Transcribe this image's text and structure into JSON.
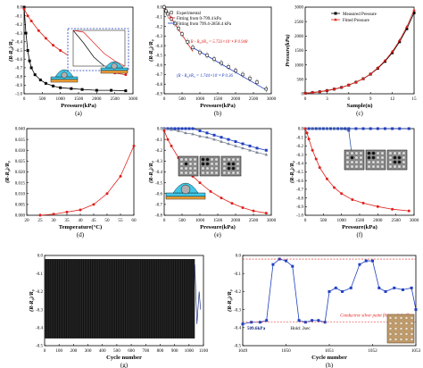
{
  "colors": {
    "black": "#000000",
    "red": "#e0201b",
    "blue": "#1f3fbf",
    "steelblue": "#3a5aa6",
    "gray": "#7a8494",
    "cyan": "#41c8e8",
    "orange": "#f2a33a",
    "navy": "#0b1e78"
  },
  "chart_data": [
    {
      "id": "a",
      "type": "line",
      "caption": "(a)",
      "xlabel": "Pressure(kPa)",
      "ylabel": "(R-R₀)/R₀",
      "xlim": [
        0,
        3000
      ],
      "ylim": [
        -1.0,
        0.0
      ],
      "xticks": [
        "0",
        "500",
        "1000",
        "1500",
        "2000",
        "2500",
        "3000"
      ],
      "yticks": [
        "0.0",
        "-0.1",
        "-0.2",
        "-0.3",
        "-0.4",
        "-0.5",
        "-0.6",
        "-0.7",
        "-0.8",
        "-0.9",
        "-1.0"
      ],
      "series": [
        {
          "color": "black",
          "marker": "square",
          "x": [
            0,
            50,
            100,
            150,
            200,
            300,
            450,
            600,
            800,
            1000,
            1300,
            1600,
            2000,
            2400,
            2800
          ],
          "y": [
            0,
            -0.3,
            -0.5,
            -0.62,
            -0.7,
            -0.78,
            -0.84,
            -0.88,
            -0.91,
            -0.93,
            -0.94,
            -0.95,
            -0.96,
            -0.96,
            -0.965
          ]
        },
        {
          "color": "red",
          "marker": "circle",
          "x": [
            0,
            100,
            200,
            400,
            600,
            800,
            1000,
            1300,
            1600,
            1900,
            2200,
            2500,
            2800
          ],
          "y": [
            -0.02,
            -0.1,
            -0.16,
            -0.27,
            -0.36,
            -0.44,
            -0.5,
            -0.58,
            -0.64,
            -0.69,
            -0.73,
            -0.76,
            -0.78
          ]
        }
      ],
      "inset": {
        "series": [
          {
            "color": "black",
            "x": [
              0,
              2,
              4,
              6
            ],
            "y": [
              0,
              -0.35,
              -0.75,
              -1.0
            ]
          },
          {
            "color": "red",
            "x": [
              0,
              2,
              4,
              6,
              8,
              10
            ],
            "y": [
              0,
              -0.05,
              -0.35,
              -0.65,
              -0.85,
              -1.0
            ]
          }
        ]
      }
    },
    {
      "id": "b",
      "type": "scatter",
      "caption": "(b)",
      "xlabel": "Pressure(kPa)",
      "ylabel": "(R-R₀)/R₀",
      "xlim": [
        0,
        3000
      ],
      "ylim": [
        -0.9,
        0.0
      ],
      "xticks": [
        "0",
        "500",
        "1000",
        "1500",
        "2000",
        "2500",
        "3000"
      ],
      "yticks": [
        "0.0",
        "-0.1",
        "-0.2",
        "-0.3",
        "-0.4",
        "-0.5",
        "-0.6",
        "-0.7",
        "-0.8",
        "-0.9"
      ],
      "legend": [
        "Experimental",
        "Fitting from 0-799.4 kPa",
        "Fitting from 799.4-2858.4 kPa"
      ],
      "eq_low": "(R - R₀)/R₀ = 5.733×10⁻⁴ P   0.948",
      "eq_high": "(R - R₀)/R₀ = 1.744×10⁻⁴ P   0.36",
      "points": {
        "x": [
          0,
          50,
          100,
          200,
          300,
          400,
          500,
          650,
          800,
          1000,
          1200,
          1400,
          1600,
          1800,
          2000,
          2200,
          2400,
          2600,
          2858
        ],
        "y": [
          0,
          -0.04,
          -0.07,
          -0.12,
          -0.17,
          -0.22,
          -0.28,
          -0.36,
          -0.42,
          -0.47,
          -0.5,
          -0.54,
          -0.58,
          -0.62,
          -0.66,
          -0.7,
          -0.74,
          -0.78,
          -0.85
        ]
      },
      "fit_low": {
        "x": [
          0,
          800
        ],
        "y": [
          0,
          -0.46
        ]
      },
      "fit_high": {
        "x": [
          800,
          2858
        ],
        "y": [
          -0.42,
          -0.86
        ]
      }
    },
    {
      "id": "c",
      "type": "line",
      "caption": "(c)",
      "xlabel": "Sample(n)",
      "ylabel": "Pressure(kPa)",
      "xlim": [
        0,
        15
      ],
      "ylim": [
        0,
        3000
      ],
      "xticks": [
        "0",
        "3",
        "6",
        "9",
        "12",
        "15"
      ],
      "yticks": [
        "0",
        "500",
        "1000",
        "1500",
        "2000",
        "2500",
        "3000"
      ],
      "legend": [
        "Measured Pressure",
        "Fitted Pressure"
      ],
      "series": [
        {
          "name": "Measured Pressure",
          "color": "black",
          "x": [
            0,
            1,
            2,
            3,
            4,
            5,
            6,
            7,
            8,
            9,
            10,
            11,
            12,
            13,
            14,
            15
          ],
          "y": [
            20,
            40,
            70,
            110,
            160,
            220,
            300,
            400,
            520,
            680,
            880,
            1120,
            1420,
            1800,
            2250,
            2800
          ]
        },
        {
          "name": "Fitted Pressure",
          "color": "red",
          "x": [
            0,
            1,
            2,
            3,
            4,
            5,
            6,
            7,
            8,
            9,
            10,
            11,
            12,
            13,
            14,
            15
          ],
          "y": [
            25,
            45,
            75,
            115,
            165,
            225,
            305,
            405,
            525,
            690,
            900,
            1150,
            1460,
            1850,
            2320,
            2900
          ]
        }
      ]
    },
    {
      "id": "d",
      "type": "line",
      "caption": "(d)",
      "xlabel": "Temperature(°C)",
      "ylabel": "(R-R₀)/R₀",
      "xlim": [
        20,
        60
      ],
      "ylim": [
        0,
        0.04
      ],
      "xticks": [
        "20",
        "25",
        "30",
        "35",
        "40",
        "45",
        "50",
        "55",
        "60"
      ],
      "yticks": [
        "0.000",
        "0.005",
        "0.010",
        "0.015",
        "0.020",
        "0.025",
        "0.030",
        "0.035",
        "0.040"
      ],
      "series": [
        {
          "color": "red",
          "x": [
            25,
            30,
            35,
            40,
            45,
            50,
            55,
            60
          ],
          "y": [
            0,
            0.0005,
            0.0015,
            0.0025,
            0.005,
            0.01,
            0.018,
            0.032
          ]
        }
      ]
    },
    {
      "id": "e",
      "type": "line",
      "caption": "(e)",
      "xlabel": "Pressure(kPa)",
      "ylabel": "(R-R₀)/R₀",
      "xlim": [
        0,
        3000
      ],
      "ylim": [
        -0.8,
        0.0
      ],
      "xticks": [
        "0",
        "500",
        "1000",
        "1500",
        "2000",
        "2500",
        "3000"
      ],
      "yticks": [
        "0.0",
        "-0.1",
        "-0.2",
        "-0.3",
        "-0.4",
        "-0.5",
        "-0.6",
        "-0.7",
        "-0.8"
      ],
      "series": [
        {
          "color": "blue",
          "x": [
            0,
            100,
            200,
            300,
            400,
            500,
            600,
            700,
            800,
            1000,
            1200,
            1400,
            1600,
            1800,
            2000,
            2200,
            2400,
            2600,
            2858
          ],
          "y": [
            0,
            0,
            0,
            0,
            0,
            0,
            0,
            0,
            0,
            -0.02,
            -0.04,
            -0.06,
            -0.08,
            -0.1,
            -0.12,
            -0.14,
            -0.16,
            -0.18,
            -0.2
          ]
        },
        {
          "color": "gray",
          "x": [
            0,
            200,
            400,
            600,
            800,
            1000,
            1200,
            1400,
            1600,
            1800,
            2000,
            2200,
            2400,
            2600,
            2858
          ],
          "y": [
            0,
            -0.01,
            -0.02,
            -0.04,
            -0.05,
            -0.07,
            -0.08,
            -0.1,
            -0.12,
            -0.14,
            -0.16,
            -0.18,
            -0.2,
            -0.22,
            -0.24
          ]
        },
        {
          "color": "red",
          "x": [
            0,
            100,
            200,
            400,
            600,
            800,
            1000,
            1300,
            1600,
            1900,
            2200,
            2500,
            2858
          ],
          "y": [
            -0.02,
            -0.1,
            -0.16,
            -0.27,
            -0.36,
            -0.44,
            -0.5,
            -0.58,
            -0.64,
            -0.69,
            -0.73,
            -0.76,
            -0.78
          ]
        }
      ]
    },
    {
      "id": "f",
      "type": "line",
      "caption": "(f)",
      "xlabel": "Pressure(kPa)",
      "ylabel": "(R-R₀)/R₀",
      "xlim": [
        0,
        3000
      ],
      "ylim": [
        -1.0,
        0.0
      ],
      "xticks": [
        "0",
        "500",
        "1000",
        "1500",
        "2000",
        "2500",
        "3000"
      ],
      "yticks": [
        "0.0",
        "-0.1",
        "-0.2",
        "-0.3",
        "-0.4",
        "-0.5",
        "-0.6",
        "-0.7",
        "-0.8",
        "-0.9",
        "-1.0"
      ],
      "series": [
        {
          "color": "blue",
          "x": [
            0,
            100,
            200,
            300,
            400,
            500,
            600,
            700,
            800,
            900,
            1000,
            1100,
            1200,
            1400,
            1600,
            1800,
            2000,
            2200,
            2400,
            2600,
            2858
          ],
          "y": [
            0,
            0,
            0,
            0,
            0,
            0,
            0,
            0,
            0,
            0,
            0,
            0,
            0,
            0,
            0,
            0,
            0,
            0,
            0,
            0,
            0
          ]
        },
        {
          "color": "steelblue",
          "x": [
            0,
            200,
            400,
            600,
            800,
            1000,
            1200,
            1300
          ],
          "y": [
            0,
            0,
            0,
            0,
            0,
            0,
            -0.02,
            -0.35
          ]
        },
        {
          "color": "red",
          "x": [
            0,
            50,
            100,
            200,
            300,
            400,
            600,
            800,
            1000,
            1300,
            1600,
            2000,
            2400,
            2858
          ],
          "y": [
            0,
            -0.05,
            -0.12,
            -0.25,
            -0.35,
            -0.45,
            -0.58,
            -0.68,
            -0.75,
            -0.82,
            -0.86,
            -0.9,
            -0.93,
            -0.95
          ]
        }
      ]
    },
    {
      "id": "g",
      "type": "line",
      "caption": "(g)",
      "xlabel": "Cycle number",
      "ylabel": "(R-R₀)/R₀",
      "xlim": [
        0,
        1100
      ],
      "ylim": [
        -0.5,
        0.0
      ],
      "xticks": [
        "0",
        "100",
        "200",
        "300",
        "400",
        "500",
        "600",
        "700",
        "800",
        "900",
        "1000",
        "1100"
      ],
      "yticks": [
        "0.0",
        "-0.1",
        "-0.2",
        "-0.3",
        "-0.4",
        "-0.5"
      ],
      "cycles": 1050
    },
    {
      "id": "h",
      "type": "line",
      "caption": "(h)",
      "xlabel": "Cycle number",
      "ylabel": "(R-R₀)/R₀",
      "xlim": [
        1049,
        1053
      ],
      "ylim": [
        -0.5,
        0.0
      ],
      "xticks": [
        "1049",
        "1050",
        "1051",
        "1052",
        "1053"
      ],
      "yticks": [
        "0.0",
        "-0.1",
        "-0.2",
        "-0.3",
        "-0.4",
        "-0.5"
      ],
      "annotations": [
        "509.6kPa",
        "Hold: 2sec",
        "Conductive silver paint film peeled off"
      ],
      "series": [
        {
          "color": "blue",
          "x": [
            1049,
            1049.2,
            1049.4,
            1049.55,
            1049.7,
            1049.85,
            1050,
            1050.15,
            1050.3,
            1050.45,
            1050.6,
            1050.75,
            1050.9,
            1051,
            1051.15,
            1051.3,
            1051.5,
            1051.7,
            1051.85,
            1052,
            1052.15,
            1052.3,
            1052.5,
            1052.7,
            1052.9,
            1053
          ],
          "y": [
            -0.38,
            -0.37,
            -0.37,
            -0.36,
            -0.05,
            -0.02,
            -0.03,
            -0.06,
            -0.36,
            -0.37,
            -0.36,
            -0.36,
            -0.37,
            -0.2,
            -0.18,
            -0.2,
            -0.18,
            -0.05,
            -0.03,
            -0.03,
            -0.18,
            -0.2,
            -0.18,
            -0.19,
            -0.18,
            -0.3
          ]
        }
      ]
    }
  ]
}
